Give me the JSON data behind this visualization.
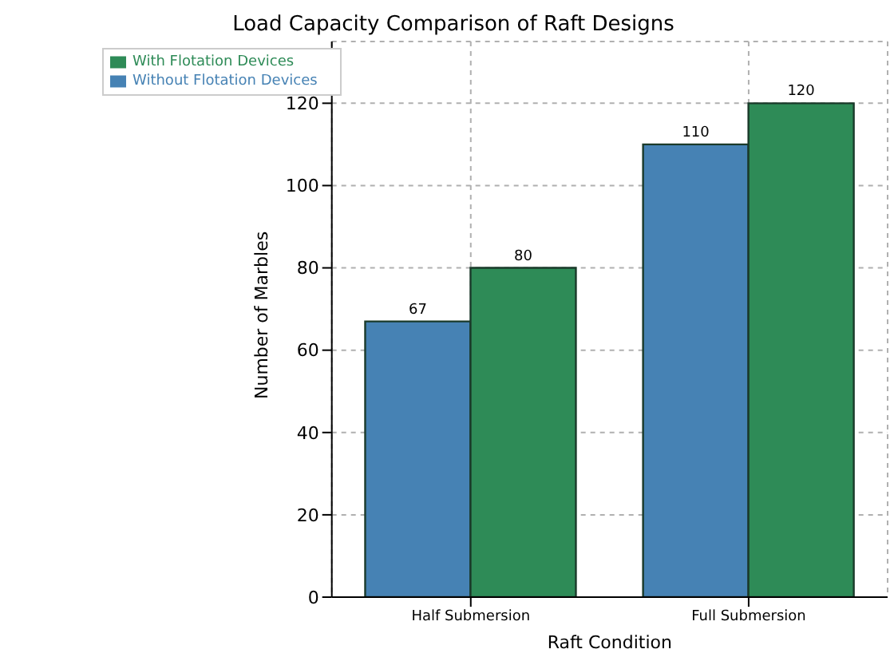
{
  "chart_data": {
    "type": "bar",
    "title": "Load Capacity Comparison of Raft Designs",
    "xlabel": "Raft Condition",
    "ylabel": "Number of Marbles",
    "categories": [
      "Half Submersion",
      "Full Submersion"
    ],
    "series": [
      {
        "name": "Without Flotation Devices",
        "color": "#4682b4",
        "values": [
          67,
          110
        ]
      },
      {
        "name": "With Flotation Devices",
        "color": "#2e8b57",
        "values": [
          80,
          120
        ]
      }
    ],
    "ylim": [
      0,
      135
    ],
    "yticks": [
      0,
      20,
      40,
      60,
      80,
      100,
      120
    ],
    "grid": true,
    "legend": "top left",
    "data_labels": true
  }
}
